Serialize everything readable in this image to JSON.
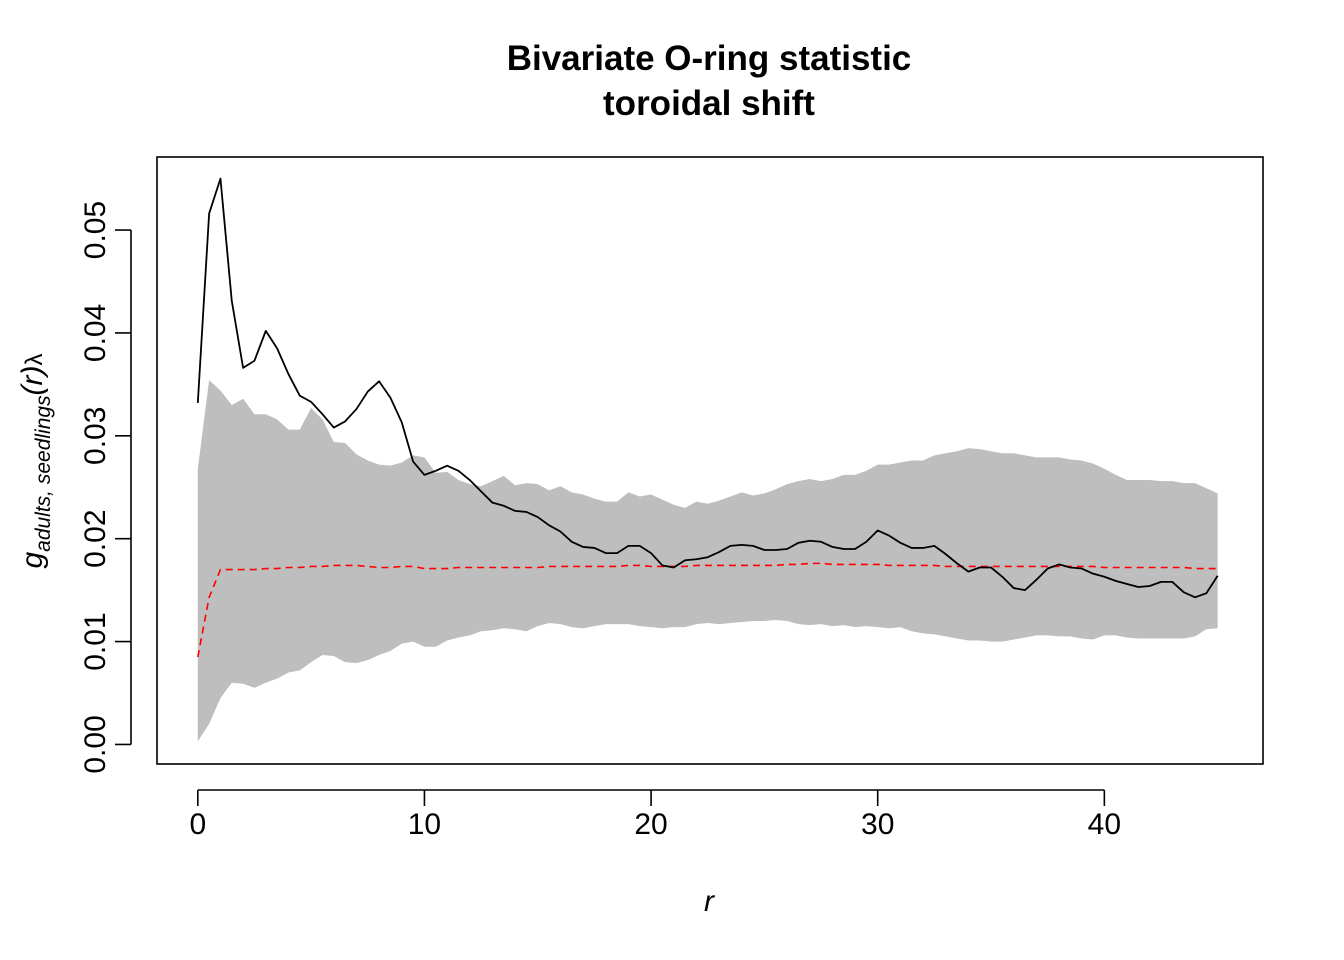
{
  "chart_data": {
    "type": "line",
    "title": [
      "Bivariate O-ring statistic",
      "toroidal shift"
    ],
    "xlabel": "r",
    "ylabel": {
      "main": "g",
      "subscript": "adults, seedlings",
      "argument": "(r)",
      "suffix": "λ"
    },
    "xlim": [
      -1.8,
      47
    ],
    "ylim": [
      -0.0019,
      0.0571
    ],
    "xticks": [
      0,
      10,
      20,
      30,
      40
    ],
    "yticks": [
      0.0,
      0.01,
      0.02,
      0.03,
      0.04,
      0.05
    ],
    "ytick_labels": [
      "0.00",
      "0.01",
      "0.02",
      "0.03",
      "0.04",
      "0.05"
    ],
    "grid": false,
    "legend": "none",
    "x": [
      0,
      0.5,
      1,
      1.5,
      2,
      2.5,
      3,
      3.5,
      4,
      4.5,
      5,
      5.5,
      6,
      6.5,
      7,
      7.5,
      8,
      8.5,
      9,
      9.5,
      10,
      10.5,
      11,
      11.5,
      12,
      12.5,
      13,
      13.5,
      14,
      14.5,
      15,
      15.5,
      16,
      16.5,
      17,
      17.5,
      18,
      18.5,
      19,
      19.5,
      20,
      20.5,
      21,
      21.5,
      22,
      22.5,
      23,
      23.5,
      24,
      24.5,
      25,
      25.5,
      26,
      26.5,
      27,
      27.5,
      28,
      28.5,
      29,
      29.5,
      30,
      30.5,
      31,
      31.5,
      32,
      32.5,
      33,
      33.5,
      34,
      34.5,
      35,
      35.5,
      36,
      36.5,
      37,
      37.5,
      38,
      38.5,
      39,
      39.5,
      40,
      40.5,
      41,
      41.5,
      42,
      42.5,
      43,
      43.5,
      44,
      44.5,
      45
    ],
    "series": [
      {
        "role": "envelope",
        "color": "#bebebe",
        "upper": [
          0.0268,
          0.0354,
          0.0344,
          0.033,
          0.0336,
          0.0321,
          0.0321,
          0.0316,
          0.0306,
          0.0306,
          0.0327,
          0.0316,
          0.0294,
          0.0293,
          0.0282,
          0.0276,
          0.0272,
          0.0271,
          0.0274,
          0.0281,
          0.0279,
          0.0264,
          0.0265,
          0.0257,
          0.0253,
          0.0251,
          0.0256,
          0.0261,
          0.0252,
          0.0254,
          0.0253,
          0.0247,
          0.0251,
          0.0245,
          0.0243,
          0.0239,
          0.0236,
          0.0236,
          0.0245,
          0.0241,
          0.0243,
          0.0238,
          0.0233,
          0.023,
          0.0236,
          0.0234,
          0.0237,
          0.0241,
          0.0245,
          0.0242,
          0.0244,
          0.0248,
          0.0253,
          0.0256,
          0.0258,
          0.0256,
          0.0258,
          0.0262,
          0.0262,
          0.0266,
          0.0272,
          0.0272,
          0.0274,
          0.0276,
          0.0276,
          0.0281,
          0.0283,
          0.0285,
          0.0288,
          0.0287,
          0.0285,
          0.0283,
          0.0283,
          0.0281,
          0.0279,
          0.0279,
          0.0279,
          0.0277,
          0.0276,
          0.0273,
          0.0268,
          0.0262,
          0.0257,
          0.0257,
          0.0257,
          0.0256,
          0.0256,
          0.0254,
          0.0254,
          0.0249,
          0.0244
        ],
        "lower": [
          0.0003,
          0.002,
          0.0045,
          0.006,
          0.0059,
          0.0055,
          0.006,
          0.0064,
          0.007,
          0.0072,
          0.008,
          0.0087,
          0.0086,
          0.008,
          0.0079,
          0.0082,
          0.0087,
          0.0091,
          0.0098,
          0.01,
          0.0095,
          0.0095,
          0.0101,
          0.0104,
          0.0106,
          0.011,
          0.0111,
          0.0113,
          0.0112,
          0.011,
          0.0115,
          0.0118,
          0.0117,
          0.0114,
          0.0113,
          0.0115,
          0.0117,
          0.0117,
          0.0117,
          0.0115,
          0.0114,
          0.0113,
          0.0114,
          0.0114,
          0.0117,
          0.0118,
          0.0117,
          0.0118,
          0.0119,
          0.012,
          0.012,
          0.0121,
          0.012,
          0.0117,
          0.0116,
          0.0117,
          0.0115,
          0.0116,
          0.0114,
          0.0115,
          0.0114,
          0.0113,
          0.0114,
          0.011,
          0.0108,
          0.0107,
          0.0105,
          0.0103,
          0.0101,
          0.0101,
          0.01,
          0.01,
          0.0102,
          0.0104,
          0.0106,
          0.0106,
          0.0105,
          0.0105,
          0.0103,
          0.0102,
          0.0106,
          0.0106,
          0.0104,
          0.0103,
          0.0103,
          0.0103,
          0.0103,
          0.0103,
          0.0105,
          0.0112,
          0.0113
        ]
      },
      {
        "role": "observed",
        "color": "#000000",
        "style": "solid",
        "values": [
          0.0332,
          0.0516,
          0.055,
          0.0431,
          0.0366,
          0.0373,
          0.0402,
          0.0385,
          0.036,
          0.0339,
          0.0333,
          0.0321,
          0.0308,
          0.0314,
          0.0326,
          0.0343,
          0.0353,
          0.0337,
          0.0313,
          0.0275,
          0.0262,
          0.0266,
          0.0271,
          0.0266,
          0.0257,
          0.0246,
          0.0235,
          0.0232,
          0.0227,
          0.0226,
          0.0221,
          0.0213,
          0.0207,
          0.0197,
          0.0192,
          0.0191,
          0.0186,
          0.0186,
          0.0193,
          0.0193,
          0.0186,
          0.0174,
          0.0172,
          0.0179,
          0.018,
          0.0182,
          0.0187,
          0.0193,
          0.0194,
          0.0193,
          0.0189,
          0.0189,
          0.019,
          0.0196,
          0.0198,
          0.0197,
          0.0192,
          0.019,
          0.019,
          0.0197,
          0.0208,
          0.0203,
          0.0196,
          0.0191,
          0.0191,
          0.0193,
          0.0185,
          0.0176,
          0.0168,
          0.0172,
          0.0172,
          0.0163,
          0.0152,
          0.015,
          0.016,
          0.0171,
          0.0175,
          0.0172,
          0.0171,
          0.0166,
          0.0163,
          0.0159,
          0.0156,
          0.0153,
          0.0154,
          0.0158,
          0.0158,
          0.0148,
          0.0143,
          0.0147,
          0.0164
        ]
      },
      {
        "role": "theoretical",
        "color": "#ff0000",
        "style": "dashed",
        "values": [
          0.0085,
          0.0143,
          0.017,
          0.017,
          0.017,
          0.017,
          0.0171,
          0.0171,
          0.0172,
          0.0172,
          0.0173,
          0.0173,
          0.0174,
          0.0174,
          0.0174,
          0.0173,
          0.0172,
          0.0172,
          0.0173,
          0.0173,
          0.0171,
          0.0171,
          0.0171,
          0.0172,
          0.0172,
          0.0172,
          0.0172,
          0.0172,
          0.0172,
          0.0172,
          0.0172,
          0.0173,
          0.0173,
          0.0173,
          0.0173,
          0.0173,
          0.0173,
          0.0173,
          0.0174,
          0.0174,
          0.0173,
          0.0173,
          0.0173,
          0.0173,
          0.0174,
          0.0174,
          0.0174,
          0.0174,
          0.0174,
          0.0174,
          0.0174,
          0.0174,
          0.0175,
          0.0175,
          0.0176,
          0.0176,
          0.0175,
          0.0175,
          0.0175,
          0.0175,
          0.0175,
          0.0174,
          0.0174,
          0.0174,
          0.0174,
          0.0174,
          0.0173,
          0.0173,
          0.0173,
          0.0173,
          0.0173,
          0.0173,
          0.0173,
          0.0173,
          0.0173,
          0.0173,
          0.0173,
          0.0173,
          0.0173,
          0.0173,
          0.0172,
          0.0172,
          0.0172,
          0.0172,
          0.0172,
          0.0172,
          0.0172,
          0.0172,
          0.0171,
          0.0171,
          0.0171
        ]
      }
    ]
  }
}
